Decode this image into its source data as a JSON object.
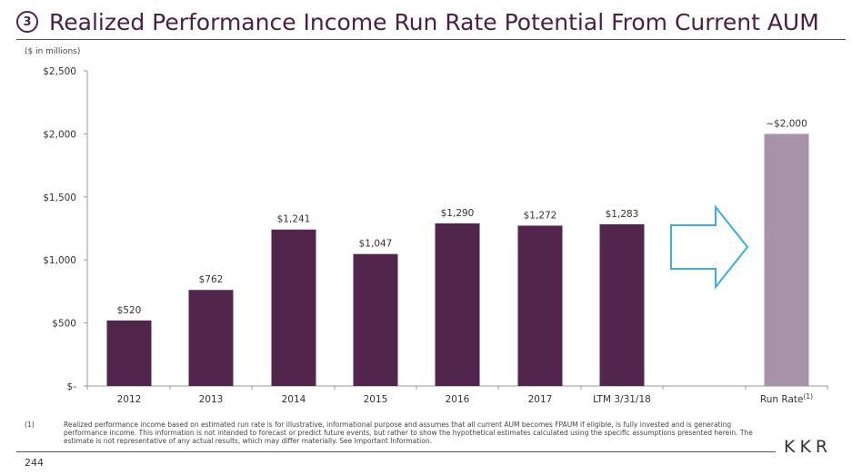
{
  "header": {
    "section_number": "3",
    "title": "Realized Performance Income Run Rate Potential From Current AUM"
  },
  "units_label": "($ in millions)",
  "chart_data": {
    "type": "bar",
    "categories": [
      "2012",
      "2013",
      "2014",
      "2015",
      "2016",
      "2017",
      "LTM 3/31/18",
      "Run Rate"
    ],
    "values": [
      520,
      762,
      1241,
      1047,
      1290,
      1272,
      1283,
      2000
    ],
    "data_labels": [
      "$520",
      "$762",
      "$1,241",
      "$1,047",
      "$1,290",
      "$1,272",
      "$1,283",
      "~$2,000"
    ],
    "ylim": [
      0,
      2500
    ],
    "yticks": [
      0,
      500,
      1000,
      1500,
      2000,
      2500
    ],
    "ytick_labels": [
      "$-",
      "$500",
      "$1,000",
      "$1,500",
      "$2,000",
      "$2,500"
    ],
    "run_rate_superscript": "(1)",
    "colors": {
      "historical": "#52264c",
      "run_rate": "#a892a8",
      "arrow": "#3aaee0"
    }
  },
  "footnote": {
    "marker": "(1)",
    "text": "Realized performance income based on estimated run rate is for illustrative, informational purpose and assumes that all current AUM becomes FPAUM if eligible, is fully invested and is generating performance income. This information is not intended to forecast or predict future events, but rather to show the hypothetical estimates calculated using the specific assumptions presented herein. The estimate is not representative of any actual results, which may differ materially. See Important Information."
  },
  "logo": "KKR",
  "page_number": "244"
}
